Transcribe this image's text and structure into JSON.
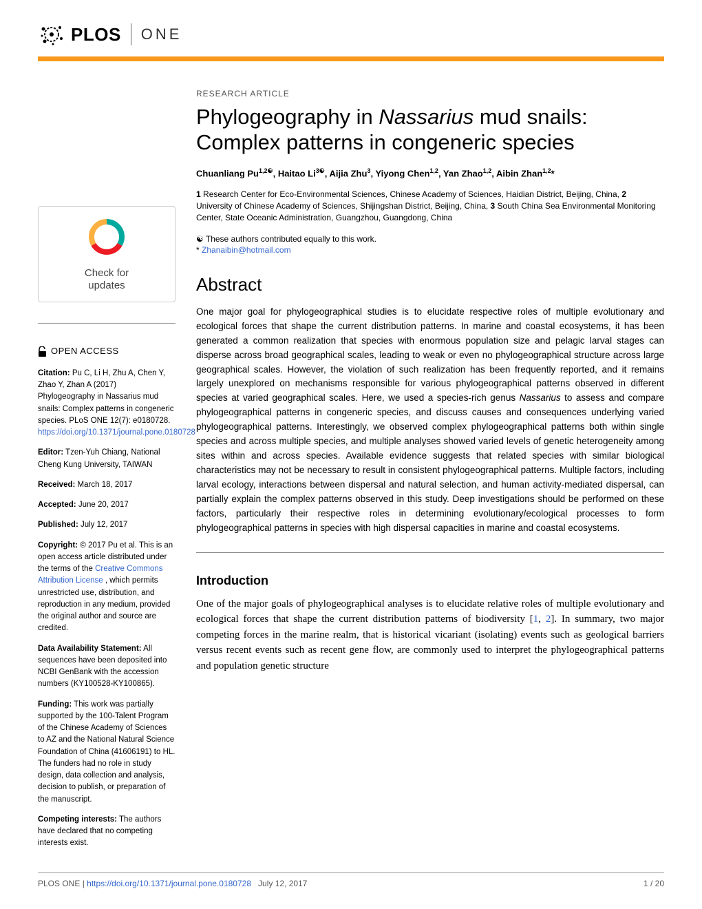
{
  "colors": {
    "brand_orange": "#f8991d",
    "link_blue": "#3366cc",
    "check_teal": "#00a99d",
    "check_red": "#ed1c24",
    "check_yellow": "#fbb040",
    "text_gray": "#555555",
    "divider_gray": "#999999"
  },
  "header": {
    "brand": "PLOS",
    "journal": "ONE"
  },
  "check_updates": {
    "line1": "Check for",
    "line2": "updates"
  },
  "open_access": "OPEN ACCESS",
  "meta": {
    "citation_label": "Citation:",
    "citation_text": "Pu C, Li H, Zhu A, Chen Y, Zhao Y, Zhan A (2017) Phylogeography in Nassarius mud snails: Complex patterns in congeneric species. PLoS ONE 12(7): e0180728. ",
    "citation_doi": "https://doi.org/10.1371/journal.pone.0180728",
    "editor_label": "Editor:",
    "editor_text": "Tzen-Yuh Chiang, National Cheng Kung University, TAIWAN",
    "received_label": "Received:",
    "received_text": "March 18, 2017",
    "accepted_label": "Accepted:",
    "accepted_text": "June 20, 2017",
    "published_label": "Published:",
    "published_text": "July 12, 2017",
    "copyright_label": "Copyright:",
    "copyright_text_1": "© 2017 Pu et al. This is an open access article distributed under the terms of the ",
    "copyright_link": "Creative Commons Attribution License",
    "copyright_text_2": ", which permits unrestricted use, distribution, and reproduction in any medium, provided the original author and source are credited.",
    "data_label": "Data Availability Statement:",
    "data_text": "All sequences have been deposited into NCBI GenBank with the accession numbers (KY100528-KY100865).",
    "funding_label": "Funding:",
    "funding_text": "This work was partially supported by the 100-Talent Program of the Chinese Academy of Sciences to AZ and the National Natural Science Foundation of China (41606191) to HL. The funders had no role in study design, data collection and analysis, decision to publish, or preparation of the manuscript.",
    "competing_label": "Competing interests:",
    "competing_text": "The authors have declared that no competing interests exist."
  },
  "article": {
    "type": "RESEARCH ARTICLE",
    "title_part1": "Phylogeography in ",
    "title_italic": "Nassarius",
    "title_part2": " mud snails: Complex patterns in congeneric species",
    "authors_html": "Chuanliang Pu<sup>1,2☯</sup>, Haitao Li<sup>3☯</sup>, Aijia Zhu<sup>3</sup>, Yiyong Chen<sup>1,2</sup>, Yan Zhao<sup>1,2</sup>, Aibin Zhan<sup>1,2</sup>*",
    "affiliations": "1 Research Center for Eco-Environmental Sciences, Chinese Academy of Sciences, Haidian District, Beijing, China, 2 University of Chinese Academy of Sciences, Shijingshan District, Beijing, China, 3 South China Sea Environmental Monitoring Center, State Oceanic Administration, Guangzhou, Guangdong, China",
    "contrib_note": "☯ These authors contributed equally to this work.",
    "corresp_prefix": "* ",
    "corresp_email": "Zhanaibin@hotmail.com",
    "abstract_heading": "Abstract",
    "abstract_text": "One major goal for phylogeographical studies is to elucidate respective roles of multiple evolutionary and ecological forces that shape the current distribution patterns. In marine and coastal ecosystems, it has been generated a common realization that species with enormous population size and pelagic larval stages can disperse across broad geographical scales, leading to weak or even no phylogeographical structure across large geographical scales. However, the violation of such realization has been frequently reported, and it remains largely unexplored on mechanisms responsible for various phylogeographical patterns observed in different species at varied geographical scales. Here, we used a species-rich genus Nassarius to assess and compare phylogeographical patterns in congeneric species, and discuss causes and consequences underlying varied phylogeographical patterns. Interestingly, we observed complex phylogeographical patterns both within single species and across multiple species, and multiple analyses showed varied levels of genetic heterogeneity among sites within and across species. Available evidence suggests that related species with similar biological characteristics may not be necessary to result in consistent phylogeographical patterns. Multiple factors, including larval ecology, interactions between dispersal and natural selection, and human activity-mediated dispersal, can partially explain the complex patterns observed in this study. Deep investigations should be performed on these factors, particularly their respective roles in determining evolutionary/ecological processes to form phylogeographical patterns in species with high dispersal capacities in marine and coastal ecosystems.",
    "intro_heading": "Introduction",
    "intro_text_1": "One of the major goals of phylogeographical analyses is to elucidate relative roles of multiple evolutionary and ecological forces that shape the current distribution patterns of biodiversity [",
    "intro_ref1": "1",
    "intro_text_2": ", ",
    "intro_ref2": "2",
    "intro_text_3": "]. In summary, two major competing forces in the marine realm, that is historical vicariant (isolating) events such as geological barriers versus recent events such as recent gene flow, are commonly used to interpret the phylogeographical patterns and population genetic structure"
  },
  "footer": {
    "journal": "PLOS ONE | ",
    "doi": "https://doi.org/10.1371/journal.pone.0180728",
    "date": "July 12, 2017",
    "page": "1 / 20"
  }
}
